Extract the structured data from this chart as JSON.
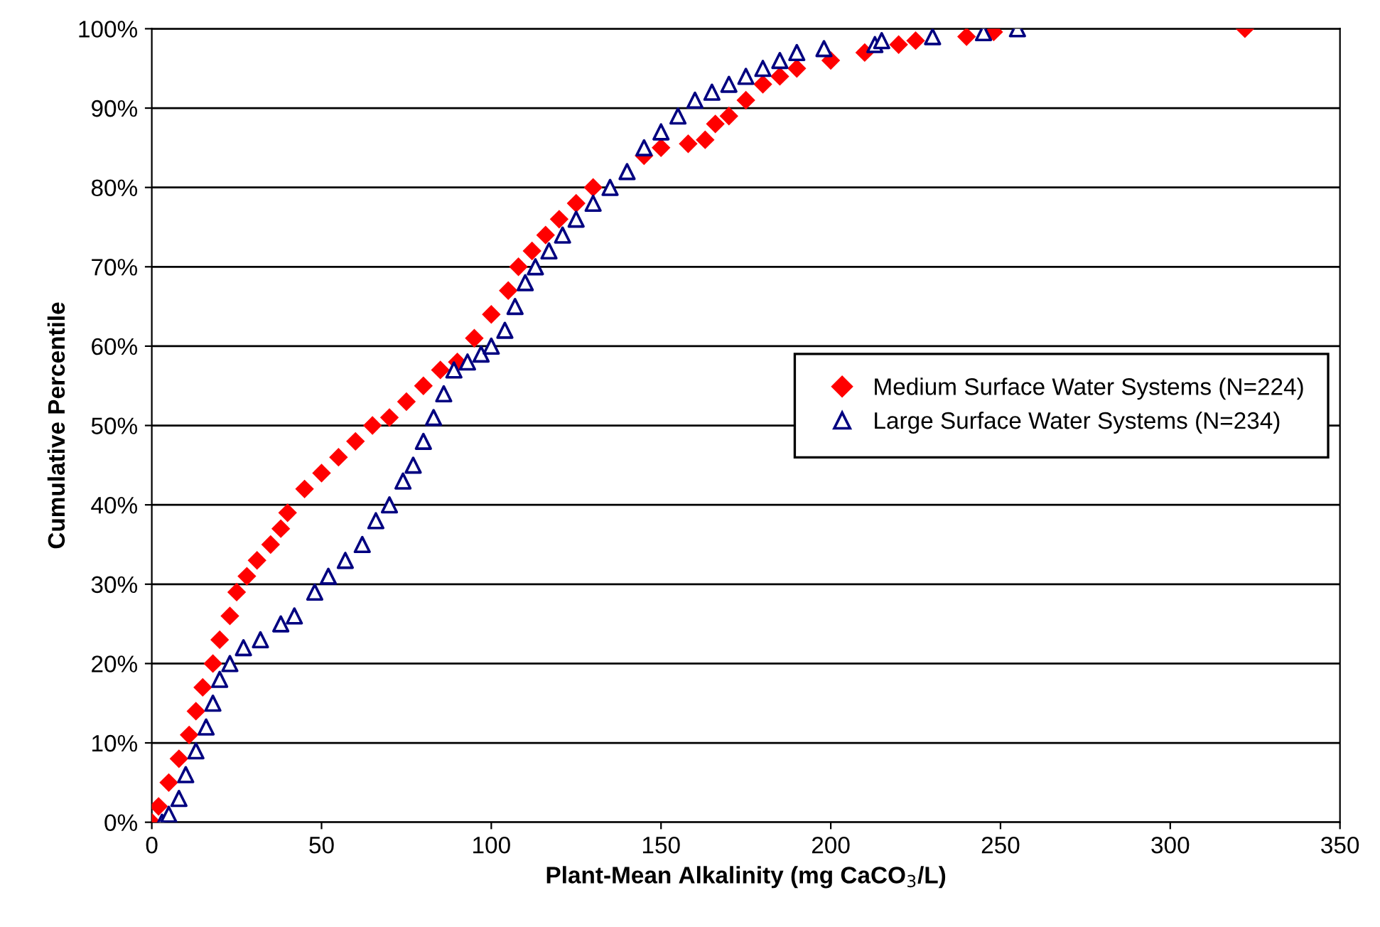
{
  "chart_data": {
    "type": "scatter",
    "xlabel": "Plant-Mean Alkalinity (mg CaCO$_{3}$/L)",
    "ylabel": "Cumulative Percentile",
    "xlim": [
      0,
      350
    ],
    "xticks": [
      0,
      50,
      100,
      150,
      200,
      250,
      300,
      350
    ],
    "ylim": [
      0,
      100
    ],
    "yticks": [
      {
        "value": 0,
        "label": "0%"
      },
      {
        "value": 10,
        "label": "10%"
      },
      {
        "value": 20,
        "label": "20%"
      },
      {
        "value": 30,
        "label": "30%"
      },
      {
        "value": 40,
        "label": "40%"
      },
      {
        "value": 50,
        "label": "50%"
      },
      {
        "value": 60,
        "label": "60%"
      },
      {
        "value": 70,
        "label": "70%"
      },
      {
        "value": 80,
        "label": "80%"
      },
      {
        "value": 90,
        "label": "90%"
      },
      {
        "value": 100,
        "label": "100%"
      }
    ],
    "grid": "y",
    "legend": "center right",
    "series": [
      {
        "name": "Medium Surface Water Systems (N=224)",
        "color": "#ff0000",
        "marker": "diamond",
        "x": [
          0,
          2,
          5,
          8,
          11,
          13,
          15,
          18,
          20,
          23,
          25,
          28,
          31,
          35,
          38,
          40,
          45,
          50,
          55,
          60,
          65,
          70,
          75,
          80,
          85,
          90,
          95,
          100,
          105,
          108,
          112,
          116,
          120,
          125,
          130,
          145,
          150,
          158,
          163,
          166,
          170,
          175,
          180,
          185,
          190,
          200,
          210,
          220,
          225,
          240,
          248,
          322
        ],
        "values": [
          0,
          2,
          5,
          8,
          11,
          14,
          17,
          20,
          23,
          26,
          29,
          31,
          33,
          35,
          37,
          39,
          42,
          44,
          46,
          48,
          50,
          51,
          53,
          55,
          57,
          58,
          61,
          64,
          67,
          70,
          72,
          74,
          76,
          78,
          80,
          84,
          85,
          85.5,
          86,
          88,
          89,
          91,
          93,
          94,
          95,
          96,
          97,
          98,
          98.5,
          99,
          99.6,
          100
        ]
      },
      {
        "name": "Large Surface Water Systems (N=234)",
        "color": "#000080",
        "marker": "triangle",
        "x": [
          3,
          5,
          8,
          10,
          13,
          16,
          18,
          20,
          23,
          27,
          32,
          38,
          42,
          48,
          52,
          57,
          62,
          66,
          70,
          74,
          77,
          80,
          83,
          86,
          89,
          93,
          97,
          100,
          104,
          107,
          110,
          113,
          117,
          121,
          125,
          130,
          135,
          140,
          145,
          150,
          155,
          160,
          165,
          170,
          175,
          180,
          185,
          190,
          198,
          213,
          215,
          230,
          245,
          255
        ],
        "values": [
          0,
          1,
          3,
          6,
          9,
          12,
          15,
          18,
          20,
          22,
          23,
          25,
          26,
          29,
          31,
          33,
          35,
          38,
          40,
          43,
          45,
          48,
          51,
          54,
          57,
          58,
          59,
          60,
          62,
          65,
          68,
          70,
          72,
          74,
          76,
          78,
          80,
          82,
          85,
          87,
          89,
          91,
          92,
          93,
          94,
          95,
          96,
          97,
          97.5,
          98,
          98.5,
          99,
          99.5,
          100
        ]
      }
    ]
  }
}
